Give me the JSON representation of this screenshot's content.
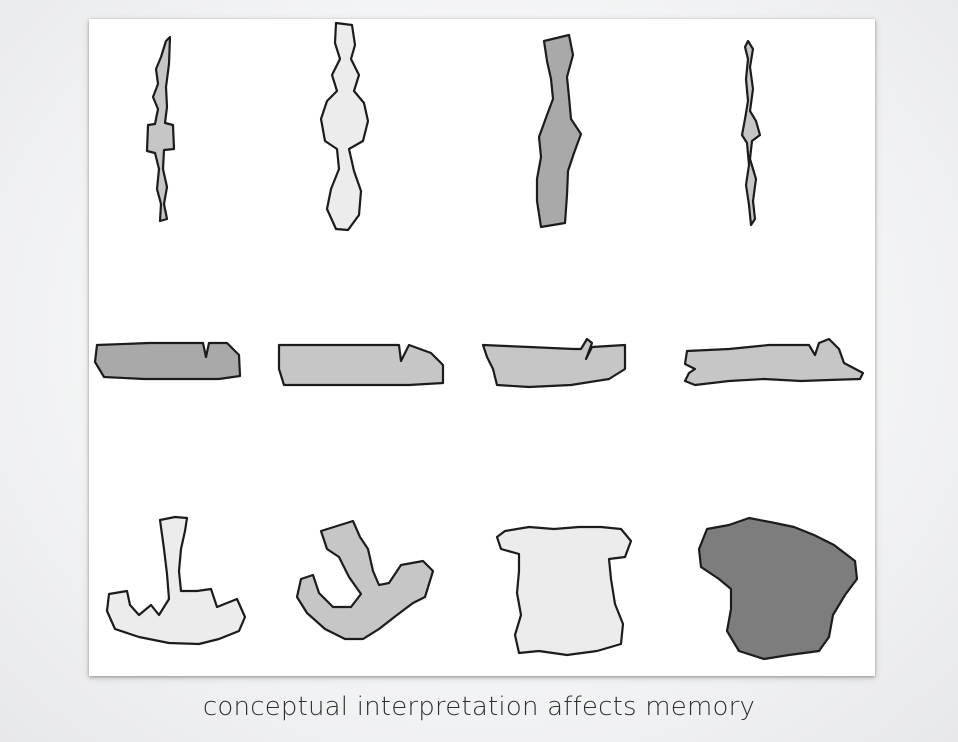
{
  "caption": "conceptual interpretation affects memory",
  "colors": {
    "background": "#f2f3f4",
    "panel": "#ffffff",
    "fill_light": "#ececec",
    "fill_mid": "#c6c6c6",
    "fill_gray": "#a9a9a9",
    "fill_dark": "#7d7d7d",
    "outline": "#1c1c1c"
  }
}
